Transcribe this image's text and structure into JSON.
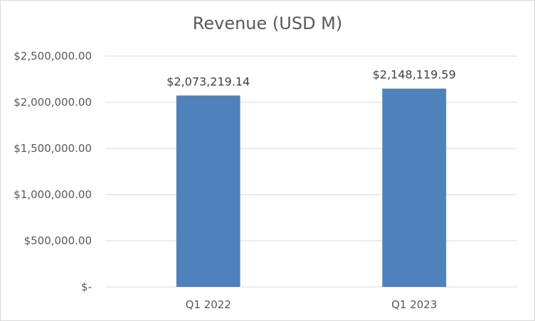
{
  "chart_data": {
    "type": "bar",
    "title": "Revenue (USD M)",
    "categories": [
      "Q1 2022",
      "Q1 2023"
    ],
    "series": [
      {
        "values": [
          2073219.14,
          2148119.59
        ]
      }
    ],
    "data_labels": [
      "$2,073,219.14",
      "$2,148,119.59"
    ],
    "y_ticks": [
      0,
      500000,
      1000000,
      1500000,
      2000000,
      2500000
    ],
    "y_tick_labels": [
      "$-",
      "$500,000.00",
      "$1,000,000.00",
      "$1,500,000.00",
      "$2,000,000.00",
      "$2,500,000.00"
    ],
    "ylim": [
      0,
      2500000
    ],
    "xlabel": "",
    "ylabel": "",
    "grid": true,
    "legend": "none",
    "bar_color": "#4f81bd"
  }
}
